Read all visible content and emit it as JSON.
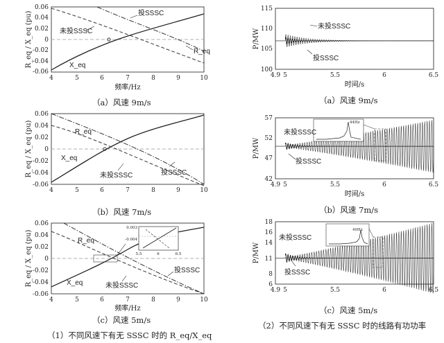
{
  "left_axis": {
    "ylabel": "R_eq / X_eq (pu)",
    "xlabel": "频率/Hz"
  },
  "right_axis": {
    "ylabel": "P/MW",
    "xlabel": "时间/s"
  },
  "captions": {
    "a_left": "（a）风速 9m/s",
    "a_right": "（a）风速 9m/s",
    "b_left": "（b）风速 7m/s",
    "b_right": "（b）风速 7m/s",
    "c_left": "（c）风速 5m/s",
    "c_right": "（c）风速 5m/s",
    "group1": "（1）不同风速下有无 SSSC 时的 R_eq/X_eq",
    "group2": "（2）不同风速下有无 SSSC 时的线路有功功率"
  },
  "chart_data": [
    {
      "id": "left-a",
      "type": "line",
      "title": "",
      "xlabel": "频率/Hz",
      "ylabel": "R_eq / X_eq (pu)",
      "xlim": [
        4,
        10
      ],
      "ylim": [
        -0.06,
        0.06
      ],
      "xticks": [
        4,
        5,
        6,
        7,
        8,
        9,
        10
      ],
      "yticks": [
        0.06,
        0.04,
        0.02,
        0,
        -0.02,
        -0.04,
        -0.06
      ],
      "annotations": [
        "投SSSC",
        "未投SSSC",
        "R_eq",
        "X_eq"
      ],
      "series": [
        {
          "name": "X_eq (投SSSC)",
          "style": "solid",
          "x": [
            4,
            5,
            6,
            7,
            8,
            9,
            10
          ],
          "y": [
            -0.058,
            -0.025,
            -0.003,
            0.014,
            0.027,
            0.038,
            0.047
          ]
        },
        {
          "name": "R_eq (未投SSSC)",
          "style": "dashed",
          "x": [
            4,
            6,
            10
          ],
          "y": [
            0.056,
            0.033,
            -0.043
          ]
        },
        {
          "name": "R_eq (投SSSC)",
          "style": "dashdot",
          "x": [
            6,
            10
          ],
          "y": [
            0.062,
            -0.022
          ]
        }
      ]
    },
    {
      "id": "left-b",
      "type": "line",
      "title": "",
      "xlabel": "",
      "ylabel": "R_eq / X_eq (pu)",
      "xlim": [
        4,
        10
      ],
      "ylim": [
        -0.06,
        0.06
      ],
      "xticks": [
        4,
        5,
        6,
        7,
        8,
        9,
        10
      ],
      "yticks": [
        0.06,
        0.04,
        0.02,
        0,
        -0.02,
        -0.04,
        -0.06
      ],
      "annotations": [
        "R_eq",
        "X_eq",
        "未投SSSC",
        "投SSSC"
      ],
      "series": [
        {
          "name": "X_eq",
          "style": "solid",
          "x": [
            4,
            5,
            6,
            7,
            8,
            9,
            10
          ],
          "y": [
            -0.057,
            -0.021,
            0.002,
            0.02,
            0.034,
            0.046,
            0.056
          ]
        },
        {
          "name": "R_eq (未投SSSC)",
          "style": "dashed",
          "x": [
            4,
            6,
            10
          ],
          "y": [
            0.04,
            0.018,
            -0.062
          ]
        },
        {
          "name": "R_eq (投SSSC)",
          "style": "dashdot",
          "x": [
            4,
            7.2,
            10
          ],
          "y": [
            0.062,
            0.0,
            -0.06
          ]
        }
      ]
    },
    {
      "id": "left-c",
      "type": "line",
      "title": "",
      "xlabel": "频率/Hz",
      "ylabel": "R_eq / X_eq (pu)",
      "xlim": [
        4,
        10
      ],
      "ylim": [
        -0.06,
        0.06
      ],
      "xticks": [
        4,
        5,
        6,
        7,
        8,
        9,
        10
      ],
      "yticks": [
        0.06,
        0.04,
        0.02,
        0,
        -0.02,
        -0.04,
        -0.06
      ],
      "annotations": [
        "R_eq",
        "X_eq",
        "未投SSSC",
        "投SSSC"
      ],
      "inset": {
        "xlim": [
          5.5,
          6.5
        ],
        "xticks": [
          5.5,
          6,
          6.5
        ],
        "yticks": [
          0.003,
          -0.004
        ]
      },
      "series": [
        {
          "name": "X_eq",
          "style": "solid",
          "x": [
            4,
            5,
            6,
            7,
            8,
            9,
            10
          ],
          "y": [
            -0.05,
            -0.02,
            -0.002,
            0.015,
            0.028,
            0.039,
            0.049
          ]
        },
        {
          "name": "R_eq (未投SSSC)",
          "style": "dashed",
          "x": [
            4,
            6,
            10
          ],
          "y": [
            0.046,
            0.014,
            -0.062
          ]
        },
        {
          "name": "R_eq (投SSSC)",
          "style": "dashdot",
          "x": [
            4,
            6,
            10
          ],
          "y": [
            0.072,
            0.003,
            -0.062
          ]
        }
      ]
    },
    {
      "id": "right-a",
      "type": "line",
      "title": "",
      "xlabel": "时间/s",
      "ylabel": "P/MW",
      "xlim": [
        4.9,
        6.5
      ],
      "ylim": [
        100,
        115
      ],
      "xticks": [
        4.9,
        5.0,
        5.5,
        6.0,
        6.5
      ],
      "yticks": [
        115,
        110,
        105,
        100
      ],
      "annotations": [
        "未投SSSC",
        "投SSSC"
      ],
      "series": [
        {
          "name": "P (未投SSSC)",
          "baseline": 107,
          "amplitude_start": 1.6,
          "behavior": "decaying oscillation"
        },
        {
          "name": "P (投SSSC)",
          "baseline": 107,
          "amplitude_start": 0.9,
          "behavior": "decaying oscillation"
        }
      ]
    },
    {
      "id": "right-b",
      "type": "line",
      "title": "",
      "xlabel": "时间/s",
      "ylabel": "P/MW",
      "xlim": [
        4.9,
        6.5
      ],
      "ylim": [
        42,
        57
      ],
      "xticks": [
        4.9,
        5.0,
        5.5,
        6.0,
        6.5
      ],
      "yticks": [
        57,
        52,
        47,
        42
      ],
      "annotations": [
        "未投SSSC",
        "投SSSC",
        "44Hz"
      ],
      "series": [
        {
          "name": "P (未投SSSC)",
          "baseline": 50,
          "amplitude_start": 0.3,
          "amplitude_end": 6.5,
          "behavior": "growing oscillation"
        },
        {
          "name": "P (投SSSC)",
          "baseline": 50,
          "behavior": "damped"
        }
      ]
    },
    {
      "id": "right-c",
      "type": "line",
      "title": "",
      "xlabel": "",
      "ylabel": "P/MW",
      "xlim": [
        4.9,
        6.5
      ],
      "ylim": [
        6,
        18
      ],
      "xticks": [
        4.9,
        5.0,
        5.5,
        6.0,
        6.5
      ],
      "yticks": [
        18,
        16,
        14,
        11,
        8,
        6
      ],
      "annotations": [
        "未投SSSC",
        "投SSSC",
        "40Hz"
      ],
      "series": [
        {
          "name": "P (未投SSSC)",
          "baseline": 11,
          "amplitude_start": 0.2,
          "amplitude_end": 6.8,
          "behavior": "growing oscillation"
        },
        {
          "name": "P (投SSSC)",
          "baseline": 11,
          "behavior": "damped"
        }
      ]
    }
  ]
}
